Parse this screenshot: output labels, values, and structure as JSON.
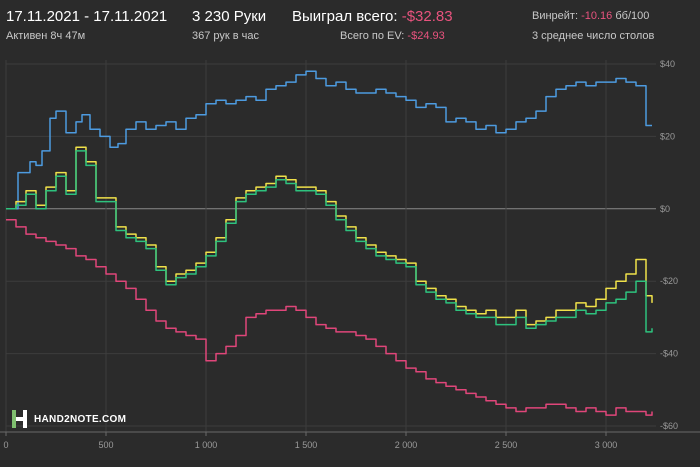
{
  "header": {
    "date_range": "17.11.2021 - 17.11.2021",
    "active": "Активен 8ч 47м",
    "hands": "3 230 Руки",
    "per_hour": "367 рук в час",
    "won_label": "Выиграл всего:",
    "won_value": "-$32.83",
    "ev_label": "Всего по EV:",
    "ev_value": "-$24.93",
    "winrate_label": "Винрейт:",
    "winrate_value": "-10.16",
    "winrate_unit": "бб/100",
    "tables": "3 среднее число столов"
  },
  "logo": {
    "text": "HAND2NOTE.COM"
  },
  "colors": {
    "background": "#2b2b2b",
    "blue": "#4d9be0",
    "yellow": "#f0e14a",
    "green": "#2ec27e",
    "pink": "#e0467a",
    "negative": "#e8537e"
  },
  "chart_data": {
    "type": "line",
    "title": "",
    "xlabel": "",
    "ylabel": "",
    "xlim": [
      0,
      3230
    ],
    "ylim": [
      -60,
      40
    ],
    "x_ticks": [
      0,
      500,
      1000,
      1500,
      2000,
      2500,
      3000
    ],
    "x_tick_labels": [
      "0",
      "500",
      "1 000",
      "1 500",
      "2 000",
      "2 500",
      "3 000"
    ],
    "y_ticks": [
      40,
      20,
      0,
      -20,
      -40,
      -60
    ],
    "y_tick_labels": [
      "$40",
      "$20",
      "$0",
      "-$20",
      "-$40",
      "-$60"
    ],
    "grid": true,
    "series": [
      {
        "color": "#4d9be0",
        "x": [
          0,
          60,
          120,
          150,
          180,
          220,
          250,
          300,
          350,
          380,
          420,
          470,
          520,
          560,
          600,
          650,
          700,
          750,
          800,
          850,
          900,
          950,
          1000,
          1050,
          1100,
          1150,
          1200,
          1250,
          1300,
          1350,
          1400,
          1450,
          1500,
          1550,
          1600,
          1650,
          1700,
          1750,
          1800,
          1850,
          1900,
          1950,
          2000,
          2050,
          2100,
          2150,
          2200,
          2250,
          2300,
          2350,
          2400,
          2450,
          2500,
          2550,
          2600,
          2650,
          2700,
          2750,
          2800,
          2850,
          2900,
          2950,
          3000,
          3050,
          3100,
          3150,
          3200,
          3230
        ],
        "y": [
          0,
          10,
          13,
          12,
          16,
          25,
          27,
          21,
          24,
          26,
          22,
          20,
          17,
          18,
          22,
          24,
          22,
          23,
          24,
          22,
          25,
          26,
          29,
          30,
          29,
          30,
          31,
          30,
          33,
          34,
          35,
          37,
          38,
          36,
          34,
          35,
          33,
          32,
          32,
          33,
          32,
          31,
          30,
          28,
          29,
          28,
          24,
          25,
          24,
          22,
          23,
          21,
          22,
          24,
          25,
          27,
          31,
          33,
          34,
          35,
          34,
          35,
          35,
          36,
          35,
          34,
          23,
          23
        ]
      },
      {
        "color": "#f0e14a",
        "x": [
          0,
          50,
          100,
          150,
          200,
          250,
          300,
          350,
          400,
          450,
          500,
          550,
          600,
          650,
          700,
          750,
          800,
          850,
          900,
          950,
          1000,
          1050,
          1100,
          1150,
          1200,
          1250,
          1300,
          1350,
          1400,
          1450,
          1500,
          1550,
          1600,
          1650,
          1700,
          1750,
          1800,
          1850,
          1900,
          1950,
          2000,
          2050,
          2100,
          2150,
          2200,
          2250,
          2300,
          2350,
          2400,
          2450,
          2500,
          2550,
          2600,
          2650,
          2700,
          2750,
          2800,
          2850,
          2900,
          2950,
          3000,
          3050,
          3100,
          3150,
          3200,
          3230
        ],
        "y": [
          0,
          2,
          5,
          1,
          6,
          10,
          5,
          17,
          13,
          3,
          3,
          -5,
          -7,
          -8,
          -10,
          -16,
          -20,
          -18,
          -17,
          -15,
          -12,
          -8,
          -3,
          3,
          5,
          6,
          7,
          9,
          8,
          6,
          6,
          5,
          2,
          -2,
          -5,
          -8,
          -10,
          -12,
          -13,
          -14,
          -15,
          -20,
          -22,
          -24,
          -25,
          -27,
          -28,
          -29,
          -28,
          -30,
          -30,
          -28,
          -32,
          -31,
          -30,
          -28,
          -28,
          -26,
          -27,
          -25,
          -22,
          -20,
          -18,
          -14,
          -24,
          -26
        ]
      },
      {
        "color": "#2ec27e",
        "x": [
          0,
          50,
          100,
          150,
          200,
          250,
          300,
          350,
          400,
          450,
          500,
          550,
          600,
          650,
          700,
          750,
          800,
          850,
          900,
          950,
          1000,
          1050,
          1100,
          1150,
          1200,
          1250,
          1300,
          1350,
          1400,
          1450,
          1500,
          1550,
          1600,
          1650,
          1700,
          1750,
          1800,
          1850,
          1900,
          1950,
          2000,
          2050,
          2100,
          2150,
          2200,
          2250,
          2300,
          2350,
          2400,
          2450,
          2500,
          2550,
          2600,
          2650,
          2700,
          2750,
          2800,
          2850,
          2900,
          2950,
          3000,
          3050,
          3100,
          3150,
          3200,
          3230
        ],
        "y": [
          0,
          1,
          4,
          0,
          5,
          9,
          4,
          16,
          12,
          2,
          2,
          -6,
          -8,
          -9,
          -11,
          -17,
          -21,
          -19,
          -18,
          -16,
          -13,
          -9,
          -4,
          2,
          4,
          5,
          6,
          8,
          7,
          5,
          5,
          4,
          1,
          -3,
          -6,
          -9,
          -11,
          -13,
          -14,
          -15,
          -16,
          -21,
          -23,
          -25,
          -26,
          -28,
          -29,
          -30,
          -30,
          -32,
          -32,
          -30,
          -33,
          -32,
          -31,
          -30,
          -30,
          -28,
          -29,
          -28,
          -26,
          -25,
          -23,
          -20,
          -34,
          -33
        ]
      },
      {
        "color": "#e0467a",
        "x": [
          0,
          50,
          100,
          150,
          200,
          250,
          300,
          350,
          400,
          450,
          500,
          550,
          600,
          650,
          700,
          750,
          800,
          850,
          900,
          950,
          1000,
          1050,
          1100,
          1150,
          1200,
          1250,
          1300,
          1350,
          1400,
          1450,
          1500,
          1550,
          1600,
          1650,
          1700,
          1750,
          1800,
          1850,
          1900,
          1950,
          2000,
          2050,
          2100,
          2150,
          2200,
          2250,
          2300,
          2350,
          2400,
          2450,
          2500,
          2550,
          2600,
          2650,
          2700,
          2750,
          2800,
          2850,
          2900,
          2950,
          3000,
          3050,
          3100,
          3150,
          3200,
          3230
        ],
        "y": [
          -3,
          -5,
          -7,
          -8,
          -9,
          -10,
          -11,
          -13,
          -14,
          -16,
          -18,
          -20,
          -22,
          -25,
          -28,
          -31,
          -33,
          -34,
          -35,
          -36,
          -42,
          -40,
          -38,
          -35,
          -30,
          -29,
          -28,
          -28,
          -27,
          -28,
          -30,
          -32,
          -33,
          -34,
          -34,
          -35,
          -36,
          -38,
          -40,
          -42,
          -44,
          -45,
          -47,
          -48,
          -49,
          -50,
          -51,
          -52,
          -53,
          -54,
          -55,
          -56,
          -55,
          -55,
          -54,
          -54,
          -55,
          -56,
          -55,
          -56,
          -57,
          -55,
          -56,
          -56,
          -57,
          -56
        ]
      }
    ]
  }
}
